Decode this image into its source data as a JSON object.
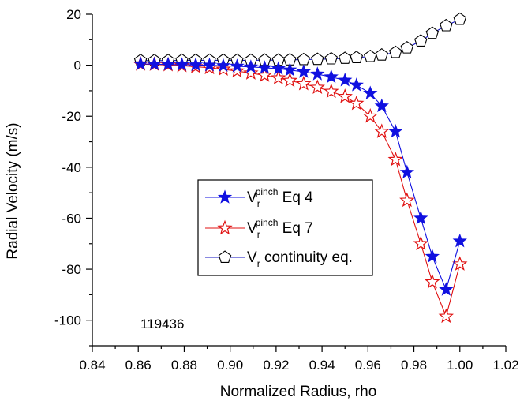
{
  "chart_data": {
    "type": "line",
    "xlabel": "Normalized Radius, rho",
    "ylabel": "Radial Velocity (m/s)",
    "xlim": [
      0.84,
      1.02
    ],
    "ylim": [
      -110,
      20
    ],
    "xticks": [
      "0.84",
      "0.86",
      "0.88",
      "0.90",
      "0.92",
      "0.94",
      "0.96",
      "0.98",
      "1.00",
      "1.02"
    ],
    "yticks": [
      "20",
      "0",
      "-20",
      "-40",
      "-60",
      "-80",
      "-100"
    ],
    "annotation": "119436",
    "legend_position": "center",
    "series": [
      {
        "name": "V_r^pinch Eq 4",
        "legend_parts": {
          "main": "V",
          "sub": "r",
          "sup": "pinch",
          "rest": " Eq 4"
        },
        "color": "#1010e0",
        "marker": "star-filled",
        "x": [
          0.861,
          0.867,
          0.873,
          0.879,
          0.885,
          0.891,
          0.897,
          0.903,
          0.909,
          0.915,
          0.921,
          0.926,
          0.932,
          0.938,
          0.944,
          0.95,
          0.955,
          0.961,
          0.966,
          0.972,
          0.977,
          0.983,
          0.988,
          0.994,
          1.0
        ],
        "y": [
          0.5,
          0.4,
          0.3,
          0.2,
          0.1,
          0,
          -0.2,
          -0.4,
          -0.7,
          -1.0,
          -1.4,
          -1.9,
          -2.6,
          -3.5,
          -4.6,
          -5.9,
          -7.8,
          -11,
          -16,
          -26,
          -42,
          -60,
          -75,
          -88,
          -69
        ]
      },
      {
        "name": "V_r^pinch Eq 7",
        "legend_parts": {
          "main": "V",
          "sub": "r",
          "sup": "pinch",
          "rest": " Eq 7"
        },
        "color": "#e01010",
        "marker": "star-open",
        "x": [
          0.861,
          0.867,
          0.873,
          0.879,
          0.885,
          0.891,
          0.897,
          0.903,
          0.909,
          0.915,
          0.921,
          0.926,
          0.932,
          0.938,
          0.944,
          0.95,
          0.955,
          0.961,
          0.966,
          0.972,
          0.977,
          0.983,
          0.988,
          0.994,
          1.0
        ],
        "y": [
          0.4,
          0.3,
          0.1,
          -0.2,
          -0.6,
          -1.0,
          -1.6,
          -2.3,
          -3.1,
          -4.0,
          -5.0,
          -6.0,
          -7.3,
          -8.7,
          -10.3,
          -12.3,
          -15,
          -20,
          -26,
          -37,
          -53,
          -70,
          -85,
          -98.5,
          -78
        ]
      },
      {
        "name": "V_r continuity eq.",
        "legend_parts": {
          "main": "V",
          "sub": "r",
          "sup": "",
          "rest": " continuity eq."
        },
        "color": "#1010c0",
        "marker": "pentagon-open",
        "x": [
          0.861,
          0.867,
          0.873,
          0.879,
          0.885,
          0.891,
          0.897,
          0.903,
          0.909,
          0.915,
          0.921,
          0.926,
          0.932,
          0.938,
          0.944,
          0.95,
          0.955,
          0.961,
          0.966,
          0.972,
          0.977,
          0.983,
          0.988,
          0.994,
          1.0
        ],
        "y": [
          1.8,
          1.8,
          1.8,
          1.9,
          1.9,
          1.9,
          1.9,
          1.9,
          1.9,
          2.0,
          2.0,
          2.1,
          2.2,
          2.3,
          2.5,
          2.7,
          3.0,
          3.4,
          4.0,
          5.0,
          6.8,
          9.5,
          12.5,
          15.5,
          18
        ]
      }
    ]
  }
}
